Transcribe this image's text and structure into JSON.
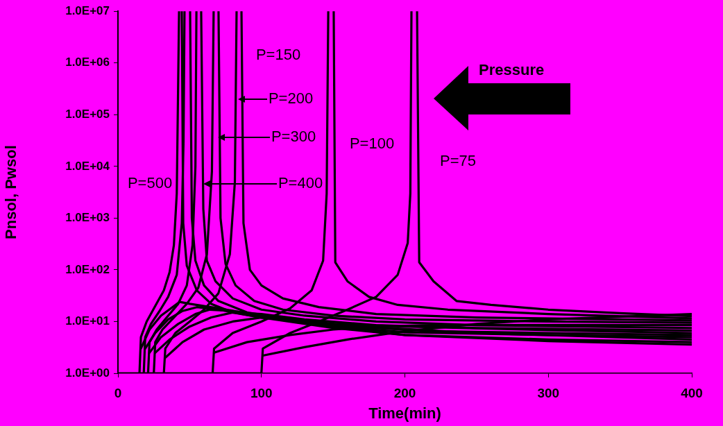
{
  "chart_data": {
    "type": "line",
    "xlabel": "Time(min)",
    "ylabel": "Pnsol, Pwsol",
    "xlim": [
      0,
      400
    ],
    "xticks": [
      0,
      100,
      200,
      300,
      400
    ],
    "ylim": [
      1,
      10000000
    ],
    "yticks": [
      {
        "value": 1,
        "label": "1.0E+00"
      },
      {
        "value": 10,
        "label": "1.0E+01"
      },
      {
        "value": 100,
        "label": "1.0E+02"
      },
      {
        "value": 1000,
        "label": "1.0E+03"
      },
      {
        "value": 10000,
        "label": "1.0E+04"
      },
      {
        "value": 100000,
        "label": "1.0E+05"
      },
      {
        "value": 1000000,
        "label": "1.0E+06"
      },
      {
        "value": 10000000,
        "label": "1.0E+07"
      }
    ],
    "log": "y",
    "grid": false,
    "legend": false,
    "marker": "none",
    "line_style": "solid",
    "annotations": [
      "P=150",
      "P=200",
      "P=300",
      "P=400",
      "P=500",
      "P=100",
      "P=75",
      "Pressure"
    ],
    "series": [
      {
        "color": "#000000",
        "x": [
          15,
          16,
          20,
          26,
          32,
          36,
          39,
          41,
          42.6,
          43.5,
          44.5,
          45.5,
          48,
          55,
          65,
          80,
          100,
          150,
          200,
          300,
          400
        ],
        "values": [
          1,
          5,
          10,
          20,
          40,
          90,
          300,
          3000,
          10000000,
          null,
          10000000,
          800,
          120,
          40,
          22,
          15,
          12,
          9,
          8,
          6.8,
          6
        ]
      },
      {
        "color": "#000000",
        "x": [
          18,
          19,
          23,
          29,
          35,
          41,
          44.5,
          45.7,
          46.4,
          48.3,
          50.3,
          51.5,
          54,
          60,
          70,
          90,
          120,
          170,
          250,
          400
        ],
        "values": [
          1,
          5,
          9,
          16,
          30,
          80,
          800,
          30000,
          10000000,
          null,
          10000000,
          1000,
          150,
          50,
          25,
          15,
          11,
          8,
          6,
          4.5
        ]
      },
      {
        "color": "#000000",
        "x": [
          21,
          22,
          27,
          34,
          42,
          48,
          52,
          54,
          54.7,
          56.3,
          58,
          59.5,
          62,
          68,
          80,
          100,
          130,
          180,
          250,
          400
        ],
        "values": [
          1,
          4,
          7,
          12,
          22,
          50,
          300,
          10000,
          10000000,
          null,
          10000000,
          1500,
          150,
          60,
          28,
          17,
          13,
          10,
          8.5,
          7.5
        ]
      },
      {
        "color": "#000000",
        "x": [
          25,
          26,
          31,
          39,
          48,
          56,
          62,
          65.5,
          66.7,
          68.4,
          70.1,
          71.5,
          75,
          82,
          95,
          115,
          150,
          200,
          300,
          400
        ],
        "values": [
          1,
          4,
          7,
          12,
          22,
          45,
          200,
          8000,
          10000000,
          null,
          10000000,
          1000,
          130,
          50,
          25,
          17,
          13,
          11,
          10,
          9.5
        ]
      },
      {
        "color": "#000000",
        "x": [
          32,
          33,
          40,
          50,
          60,
          70,
          78,
          81.5,
          82.7,
          84.4,
          86.1,
          87.5,
          92,
          100,
          115,
          140,
          180,
          250,
          400
        ],
        "values": [
          1,
          3,
          6,
          10,
          17,
          35,
          200,
          5000,
          10000000,
          null,
          10000000,
          800,
          100,
          50,
          28,
          19,
          14,
          12,
          10.5
        ]
      },
      {
        "color": "#000000",
        "x": [
          66,
          67,
          80,
          100,
          120,
          135,
          143,
          145.5,
          146.6,
          148.5,
          150.4,
          151.5,
          160,
          175,
          195,
          230,
          300,
          400
        ],
        "values": [
          1,
          3,
          6,
          10,
          18,
          40,
          150,
          3000,
          10000000,
          null,
          10000000,
          140,
          60,
          30,
          21,
          17,
          14,
          11.5
        ]
      },
      {
        "color": "#000000",
        "x": [
          0,
          100,
          101,
          120,
          140,
          160,
          180,
          195,
          202,
          203.8,
          204.6,
          206.5,
          208.5,
          210,
          220,
          236,
          260,
          300,
          350,
          400
        ],
        "values": [
          1,
          1,
          3,
          6,
          10,
          17,
          30,
          80,
          330,
          3000,
          10000000,
          null,
          10000000,
          140,
          60,
          25,
          21,
          17,
          14.5,
          12.7
        ]
      },
      {
        "color": "#000000",
        "x": [
          16,
          22,
          30,
          38,
          43,
          50,
          70,
          100,
          150,
          200,
          300,
          400
        ],
        "values": [
          3,
          7,
          13,
          19,
          24,
          22,
          18,
          13,
          8,
          6.2,
          5.5,
          5
        ]
      },
      {
        "color": "#000000",
        "x": [
          19,
          26,
          35,
          45,
          55,
          70,
          100,
          150,
          200,
          300,
          400
        ],
        "values": [
          3,
          6,
          11,
          16,
          19,
          17,
          12,
          7.5,
          5.5,
          4.5,
          4
        ]
      },
      {
        "color": "#000000",
        "x": [
          22,
          30,
          42,
          54,
          64,
          80,
          110,
          160,
          220,
          300,
          400
        ],
        "values": [
          2.5,
          5,
          9,
          14,
          17,
          16,
          12,
          8,
          6.5,
          6,
          5.5
        ]
      },
      {
        "color": "#000000",
        "x": [
          26,
          36,
          50,
          65,
          80,
          100,
          130,
          180,
          250,
          400
        ],
        "values": [
          2.5,
          4.5,
          8,
          12,
          15,
          14,
          11,
          8.5,
          7.5,
          6.7
        ]
      },
      {
        "color": "#000000",
        "x": [
          33,
          45,
          60,
          80,
          100,
          120,
          150,
          200,
          300,
          400
        ],
        "values": [
          2,
          4,
          7,
          10,
          12,
          11,
          8,
          5.5,
          4.2,
          3.6
        ]
      },
      {
        "color": "#000000",
        "x": [
          67,
          90,
          120,
          150,
          180,
          220,
          300,
          400
        ],
        "values": [
          2.5,
          4,
          5.5,
          7,
          8,
          8.5,
          8.6,
          8.5
        ]
      },
      {
        "color": "#000000",
        "x": [
          101,
          130,
          160,
          200,
          250,
          300,
          400
        ],
        "values": [
          2.2,
          3.2,
          4.5,
          6.5,
          9,
          11,
          14
        ]
      }
    ]
  }
}
